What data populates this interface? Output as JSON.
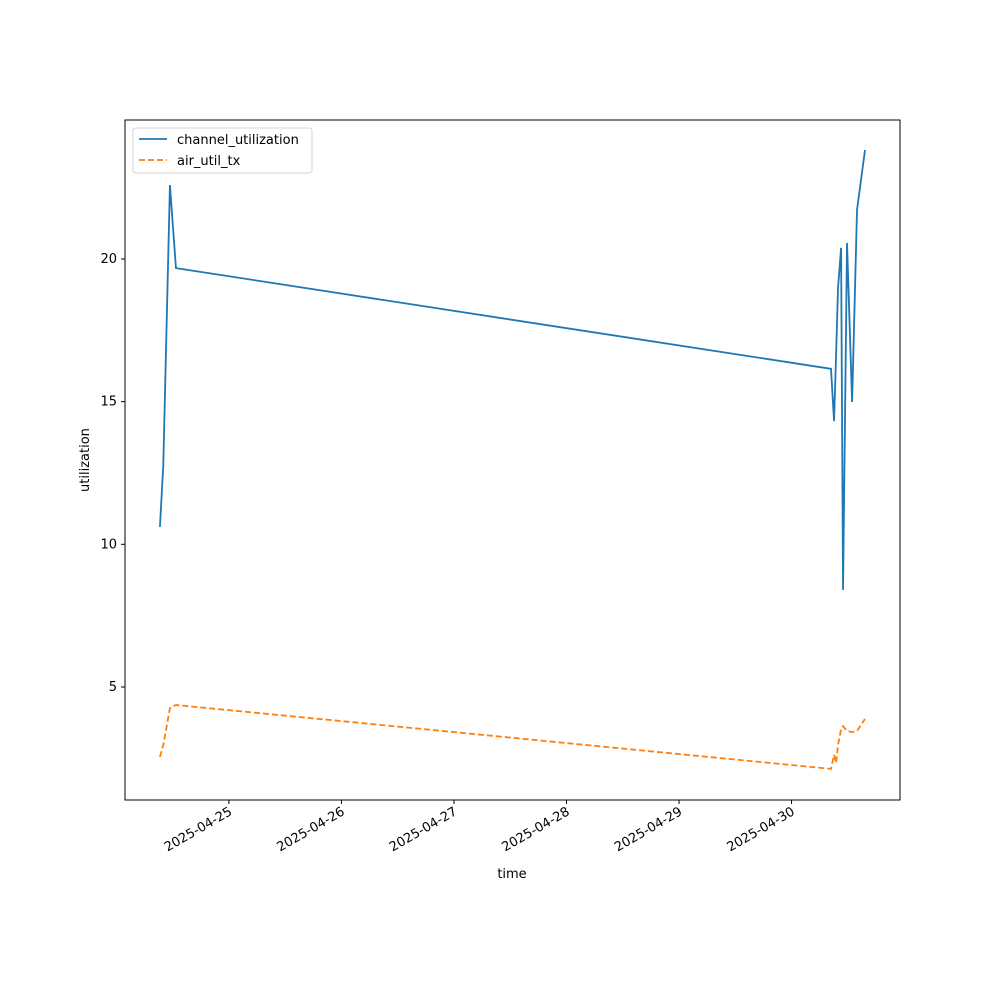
{
  "chart_data": {
    "type": "line",
    "xlabel": "time",
    "ylabel": "utilization",
    "x": [
      "2025-04-24T09:17",
      "2025-04-24T10:00",
      "2025-04-24T11:25",
      "2025-04-24T12:42",
      "2025-04-30T08:25",
      "2025-04-30T09:04",
      "2025-04-30T09:30",
      "2025-04-30T09:55",
      "2025-04-30T10:34",
      "2025-04-30T10:59",
      "2025-04-30T11:50",
      "2025-04-30T12:55",
      "2025-04-30T13:58",
      "2025-04-30T15:40"
    ],
    "series": [
      {
        "name": "channel_utilization",
        "color": "#1f77b4",
        "dash": "solid",
        "values": [
          10.61,
          12.78,
          22.59,
          19.68,
          16.15,
          14.32,
          16.64,
          18.98,
          20.39,
          8.4,
          20.56,
          14.99,
          21.72,
          23.82
        ]
      },
      {
        "name": "air_util_tx",
        "color": "#ff7f0e",
        "dash": "dashed",
        "values": [
          2.55,
          2.97,
          4.26,
          4.37,
          2.13,
          2.62,
          2.34,
          2.97,
          3.53,
          3.63,
          3.46,
          3.42,
          3.46,
          3.88
        ]
      }
    ],
    "xlim": [
      "2025-04-24T01:50",
      "2025-04-30T23:08"
    ],
    "xticks": [
      "2025-04-25",
      "2025-04-26",
      "2025-04-27",
      "2025-04-28",
      "2025-04-29",
      "2025-04-30"
    ],
    "ylim": [
      1.04,
      24.87
    ],
    "yticks": [
      5,
      10,
      15,
      20
    ],
    "grid": false,
    "legend": "upper left"
  }
}
